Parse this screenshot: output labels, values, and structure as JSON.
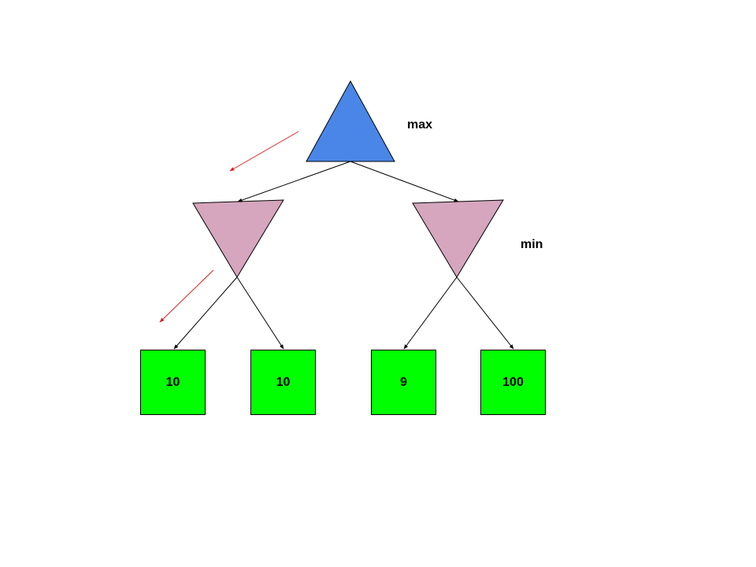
{
  "labels": {
    "max": "max",
    "min": "min"
  },
  "leaves": [
    {
      "value": "10"
    },
    {
      "value": "10"
    },
    {
      "value": "9"
    },
    {
      "value": "100"
    }
  ],
  "colors": {
    "max_node": "#4a86e8",
    "min_node": "#d5a6bd",
    "leaf": "#00ff00",
    "edge": "#000000",
    "search_arrow": "#e02020"
  }
}
